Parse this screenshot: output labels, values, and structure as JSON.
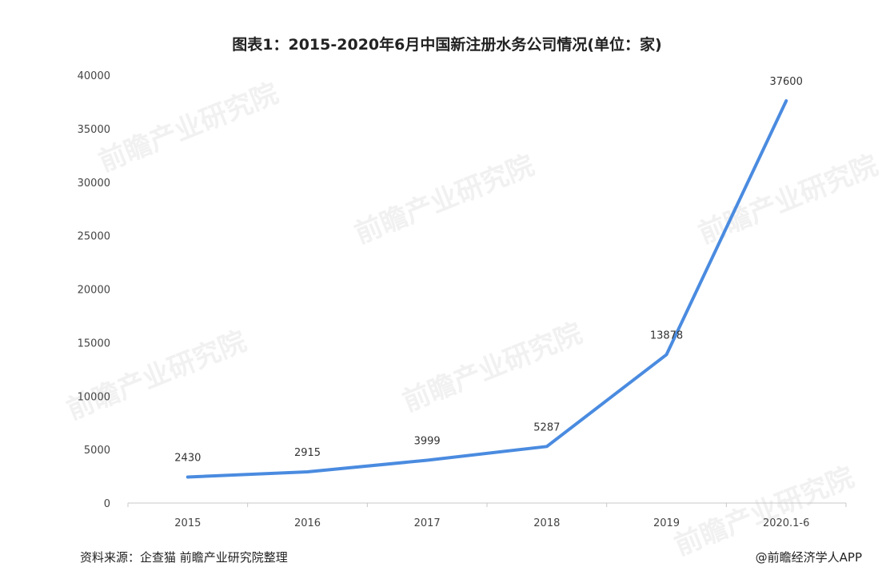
{
  "chart_data": {
    "type": "line",
    "title": "图表1：2015-2020年6月中国新注册水务公司情况(单位：家)",
    "categories": [
      "2015",
      "2016",
      "2017",
      "2018",
      "2019",
      "2020.1-6"
    ],
    "series": [
      {
        "values": [
          2430,
          2915,
          3999,
          5287,
          13878,
          37600
        ]
      }
    ],
    "data_labels": [
      "2430",
      "2915",
      "3999",
      "5287",
      "13878",
      "37600"
    ],
    "y_ticks": [
      "0",
      "5000",
      "10000",
      "15000",
      "20000",
      "25000",
      "30000",
      "35000",
      "40000"
    ],
    "ylim": [
      0,
      40000
    ],
    "grid": false,
    "legend": "none",
    "line_color": "#4a8be0"
  },
  "watermark": "前瞻产业研究院",
  "footer": {
    "source": "资料来源：企查猫 前瞻产业研究院整理",
    "credit": "@前瞻经济学人APP"
  }
}
